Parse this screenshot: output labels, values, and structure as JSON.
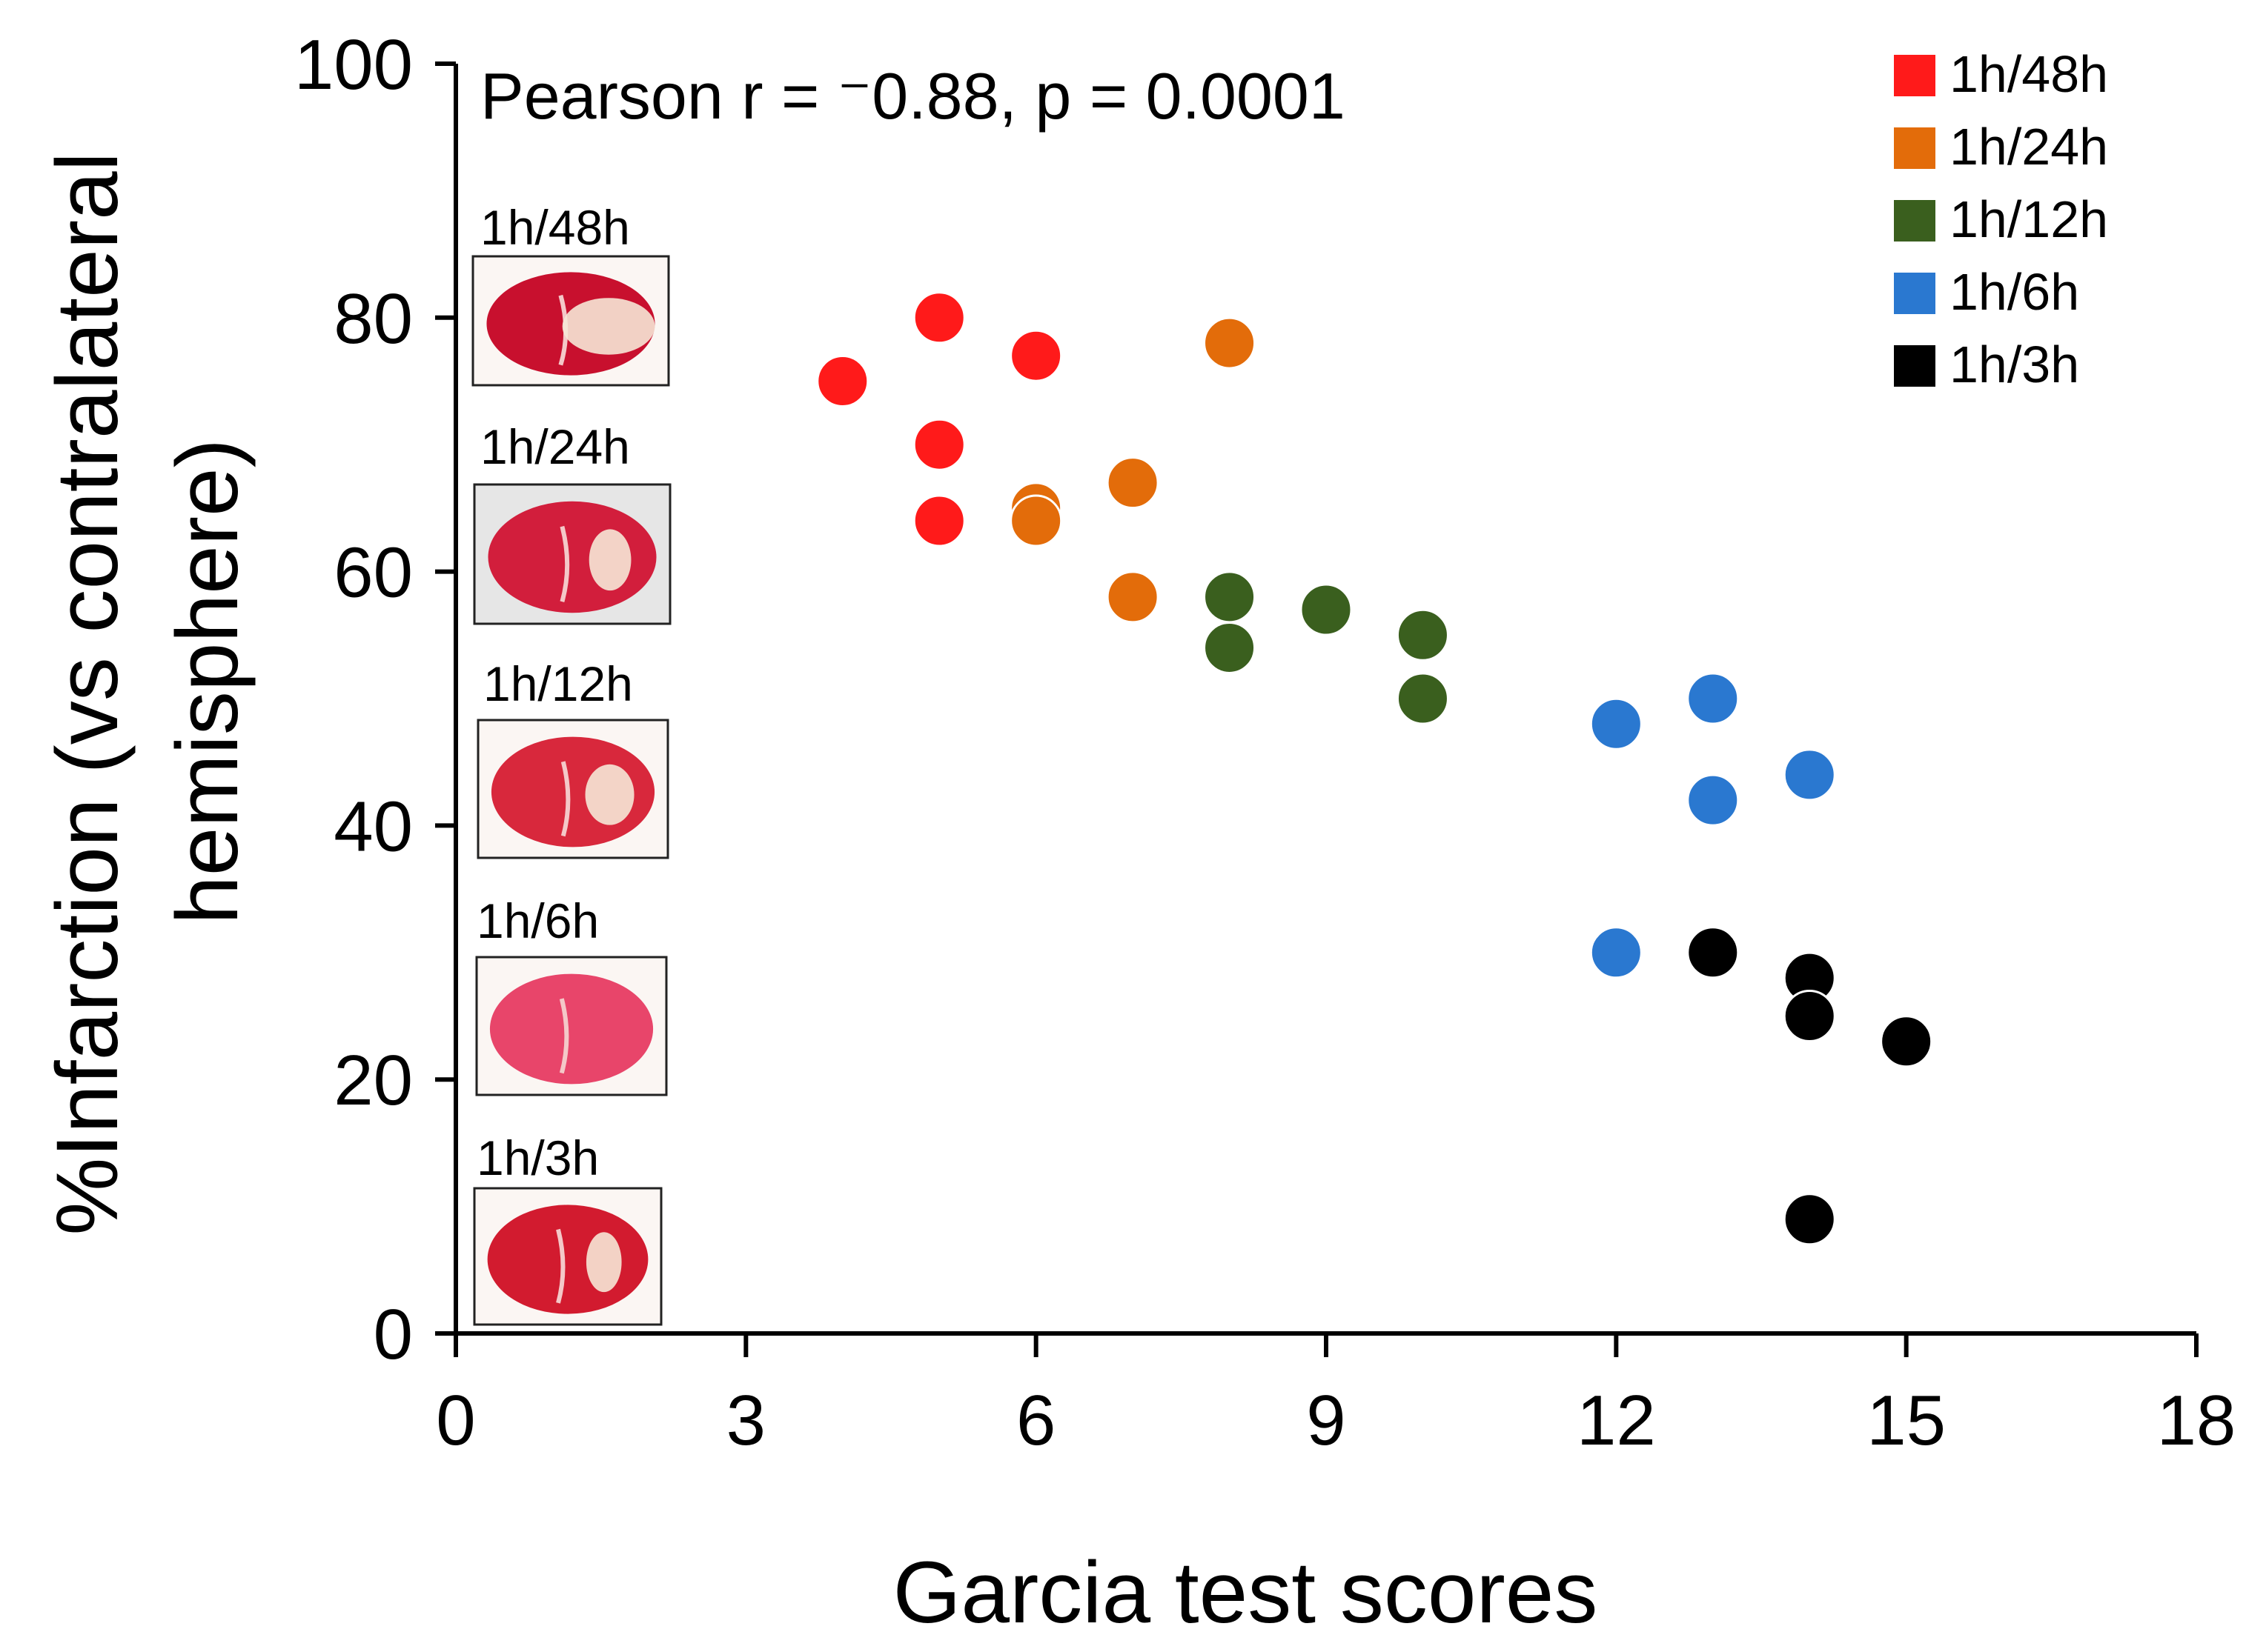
{
  "chart_data": {
    "type": "scatter",
    "title": "",
    "xlabel": "Garcia test scores",
    "ylabel_lines": [
      "%Infarction (vs contralateral",
      "hemisphere)"
    ],
    "annotation": "Pearson r = ⁻0.88, p = 0.0001",
    "xlim": [
      0,
      18
    ],
    "ylim": [
      0,
      100
    ],
    "x_ticks": [
      "0",
      "3",
      "6",
      "9",
      "12",
      "15",
      "18"
    ],
    "y_ticks": [
      "0",
      "20",
      "40",
      "60",
      "80",
      "100"
    ],
    "legend_position": "top-right",
    "series": [
      {
        "name": "1h/48h",
        "color": "#ff1a1a",
        "points": [
          [
            4,
            75
          ],
          [
            5,
            80
          ],
          [
            5,
            70
          ],
          [
            5,
            64
          ],
          [
            6,
            77
          ]
        ]
      },
      {
        "name": "1h/24h",
        "color": "#e36c0a",
        "points": [
          [
            6,
            65
          ],
          [
            6,
            64
          ],
          [
            7,
            67
          ],
          [
            7,
            58
          ],
          [
            8,
            78
          ]
        ]
      },
      {
        "name": "1h/12h",
        "color": "#3a5f1e",
        "points": [
          [
            8,
            58
          ],
          [
            8,
            54
          ],
          [
            9,
            57
          ],
          [
            10,
            55
          ],
          [
            10,
            50
          ]
        ]
      },
      {
        "name": "1h/6h",
        "color": "#2a78d0",
        "points": [
          [
            12,
            48
          ],
          [
            12,
            30
          ],
          [
            13,
            50
          ],
          [
            13,
            42
          ],
          [
            14,
            44
          ]
        ]
      },
      {
        "name": "1h/3h",
        "color": "#000000",
        "points": [
          [
            13,
            30
          ],
          [
            14,
            28
          ],
          [
            14,
            25
          ],
          [
            14,
            9
          ],
          [
            15,
            23
          ]
        ]
      }
    ],
    "thumbnails": [
      {
        "label": "1h/48h",
        "type": "brain-section"
      },
      {
        "label": "1h/24h",
        "type": "brain-section"
      },
      {
        "label": "1h/12h",
        "type": "brain-section"
      },
      {
        "label": "1h/6h",
        "type": "brain-section"
      },
      {
        "label": "1h/3h",
        "type": "brain-section"
      }
    ]
  }
}
